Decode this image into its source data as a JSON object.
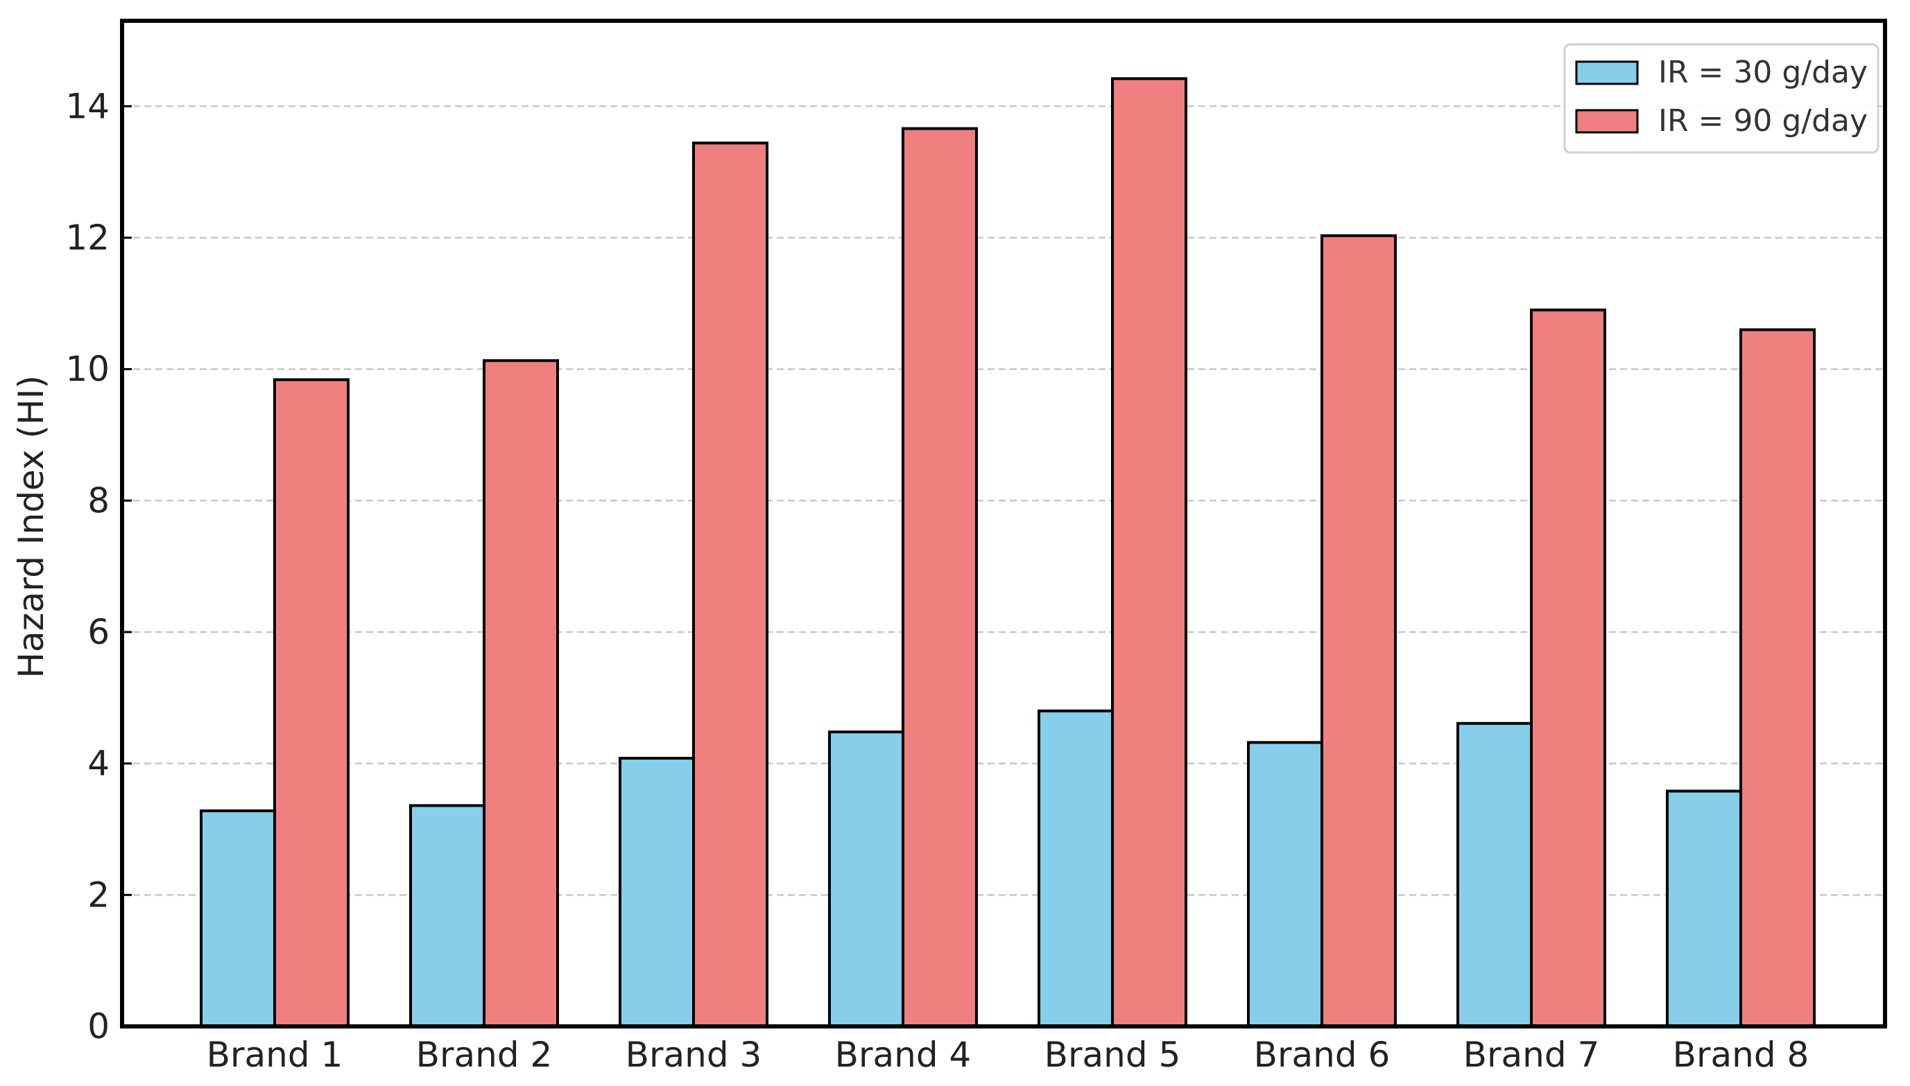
{
  "chart_data": {
    "type": "bar",
    "categories": [
      "Brand 1",
      "Brand 2",
      "Brand 3",
      "Brand 4",
      "Brand 5",
      "Brand 6",
      "Brand 7",
      "Brand 8"
    ],
    "series": [
      {
        "name": "IR = 30 g/day",
        "color": "#87CEEB",
        "values": [
          3.28,
          3.36,
          4.08,
          4.48,
          4.8,
          4.32,
          4.61,
          3.58
        ]
      },
      {
        "name": "IR = 90 g/day",
        "color": "#F08080",
        "values": [
          9.84,
          10.13,
          13.44,
          13.66,
          14.42,
          12.03,
          10.9,
          10.6
        ]
      }
    ],
    "title": "",
    "xlabel": "",
    "ylabel": "Hazard Index (HI)",
    "ylim": [
      0,
      15.3
    ],
    "yticks": [
      0,
      2,
      4,
      6,
      8,
      10,
      12,
      14
    ],
    "grid": "y-dashed",
    "legend_position": "top-right"
  }
}
